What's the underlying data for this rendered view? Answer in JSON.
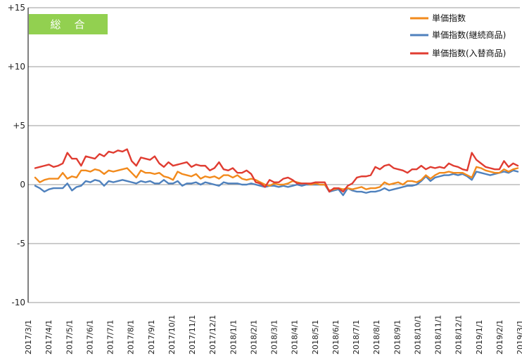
{
  "colors": {
    "badge": "#92d050",
    "unit_index": "#f28a1c",
    "continuing": "#4f81bd",
    "replaced": "#e03c31",
    "grid": "#9a9a9a",
    "axis": "#000000"
  },
  "badge": {
    "label": "総　合"
  },
  "chart_data": {
    "type": "line",
    "ylim": [
      -10,
      15
    ],
    "yticks": [
      -10,
      -5,
      0,
      5,
      10,
      15
    ],
    "ytick_labels": [
      "-10",
      "-5",
      "0",
      "+5",
      "+10",
      "+15"
    ],
    "grid": "horizontal",
    "legend_position": "top-right",
    "x_labels": [
      "2017/3/1",
      "2017/4/1",
      "2017/5/1",
      "2017/6/1",
      "2017/7/1",
      "2017/8/1",
      "2017/9/1",
      "2017/10/1",
      "2017/11/1",
      "2017/12/1",
      "2018/1/1",
      "2018/2/1",
      "2018/3/1",
      "2018/4/1",
      "2018/5/1",
      "2018/6/1",
      "2018/7/1",
      "2018/8/1",
      "2018/9/1",
      "2018/10/1",
      "2018/11/1",
      "2018/12/1",
      "2019/1/1",
      "2019/2/1",
      "2019/3/1"
    ],
    "series": [
      {
        "name": "単価指数",
        "color_key": "unit_index",
        "values": [
          0.6,
          0.2,
          0.4,
          0.5,
          0.5,
          0.5,
          1.0,
          0.5,
          0.7,
          0.6,
          1.2,
          1.2,
          1.1,
          1.3,
          1.2,
          0.9,
          1.2,
          1.1,
          1.2,
          1.3,
          1.4,
          1.0,
          0.6,
          1.2,
          1.0,
          1.0,
          0.9,
          1.0,
          0.7,
          0.6,
          0.4,
          1.1,
          0.9,
          0.8,
          0.7,
          0.9,
          0.5,
          0.7,
          0.6,
          0.7,
          0.5,
          0.8,
          0.8,
          0.6,
          0.8,
          0.5,
          0.4,
          0.5,
          0.4,
          0.2,
          0.0,
          -0.1,
          0.1,
          0.0,
          0.0,
          0.1,
          0.3,
          0.2,
          0.1,
          0.1,
          0.0,
          0.1,
          0.0,
          0.0,
          -0.5,
          -0.4,
          -0.3,
          -0.4,
          -0.3,
          -0.4,
          -0.3,
          -0.2,
          -0.4,
          -0.3,
          -0.3,
          -0.2,
          0.2,
          0.0,
          0.1,
          0.2,
          0.0,
          0.3,
          0.3,
          0.2,
          0.4,
          0.8,
          0.5,
          0.8,
          1.0,
          1.0,
          1.1,
          1.0,
          1.0,
          1.0,
          0.8,
          0.6,
          1.5,
          1.4,
          1.2,
          1.1,
          1.0,
          1.0,
          1.3,
          1.1,
          1.3,
          1.4
        ]
      },
      {
        "name": "単価指数(継続商品)",
        "color_key": "continuing",
        "values": [
          -0.1,
          -0.3,
          -0.6,
          -0.4,
          -0.3,
          -0.3,
          -0.3,
          0.1,
          -0.5,
          -0.2,
          -0.1,
          0.3,
          0.2,
          0.4,
          0.3,
          -0.1,
          0.3,
          0.2,
          0.3,
          0.4,
          0.3,
          0.2,
          0.1,
          0.3,
          0.2,
          0.3,
          0.1,
          0.1,
          0.4,
          0.1,
          0.1,
          0.3,
          -0.1,
          0.1,
          0.1,
          0.2,
          0.0,
          0.2,
          0.1,
          0.0,
          -0.1,
          0.2,
          0.1,
          0.1,
          0.1,
          0.0,
          0.0,
          0.1,
          0.0,
          -0.1,
          -0.2,
          -0.1,
          -0.1,
          -0.2,
          -0.1,
          -0.2,
          -0.1,
          0.0,
          -0.1,
          0.0,
          0.0,
          0.0,
          0.0,
          0.0,
          -0.6,
          -0.5,
          -0.4,
          -0.9,
          -0.3,
          -0.5,
          -0.6,
          -0.6,
          -0.7,
          -0.6,
          -0.6,
          -0.5,
          -0.3,
          -0.5,
          -0.4,
          -0.3,
          -0.2,
          -0.1,
          -0.1,
          0.0,
          0.3,
          0.7,
          0.3,
          0.6,
          0.7,
          0.8,
          0.8,
          0.9,
          0.8,
          0.9,
          0.7,
          0.4,
          1.1,
          1.0,
          0.9,
          0.8,
          0.9,
          1.0,
          1.1,
          1.0,
          1.2,
          1.1
        ]
      },
      {
        "name": "単価指数(入替商品)",
        "color_key": "replaced",
        "values": [
          1.4,
          1.5,
          1.6,
          1.7,
          1.5,
          1.6,
          1.8,
          2.7,
          2.2,
          2.2,
          1.6,
          2.4,
          2.3,
          2.2,
          2.6,
          2.4,
          2.8,
          2.7,
          2.9,
          2.8,
          3.0,
          2.0,
          1.6,
          2.3,
          2.2,
          2.1,
          2.4,
          1.8,
          1.5,
          1.9,
          1.6,
          1.7,
          1.8,
          1.9,
          1.5,
          1.7,
          1.6,
          1.6,
          1.2,
          1.4,
          1.9,
          1.3,
          1.2,
          1.4,
          1.0,
          1.0,
          1.2,
          0.9,
          0.2,
          0.1,
          -0.2,
          0.4,
          0.2,
          0.2,
          0.5,
          0.6,
          0.4,
          0.1,
          0.1,
          0.1,
          0.1,
          0.2,
          0.2,
          0.2,
          -0.6,
          -0.3,
          -0.3,
          -0.6,
          -0.1,
          0.1,
          0.6,
          0.7,
          0.7,
          0.8,
          1.5,
          1.3,
          1.6,
          1.7,
          1.4,
          1.3,
          1.2,
          1.0,
          1.3,
          1.3,
          1.6,
          1.3,
          1.5,
          1.4,
          1.5,
          1.4,
          1.8,
          1.6,
          1.5,
          1.3,
          1.2,
          2.7,
          2.1,
          1.8,
          1.5,
          1.4,
          1.3,
          1.3,
          2.0,
          1.5,
          1.8,
          1.6
        ]
      }
    ]
  }
}
